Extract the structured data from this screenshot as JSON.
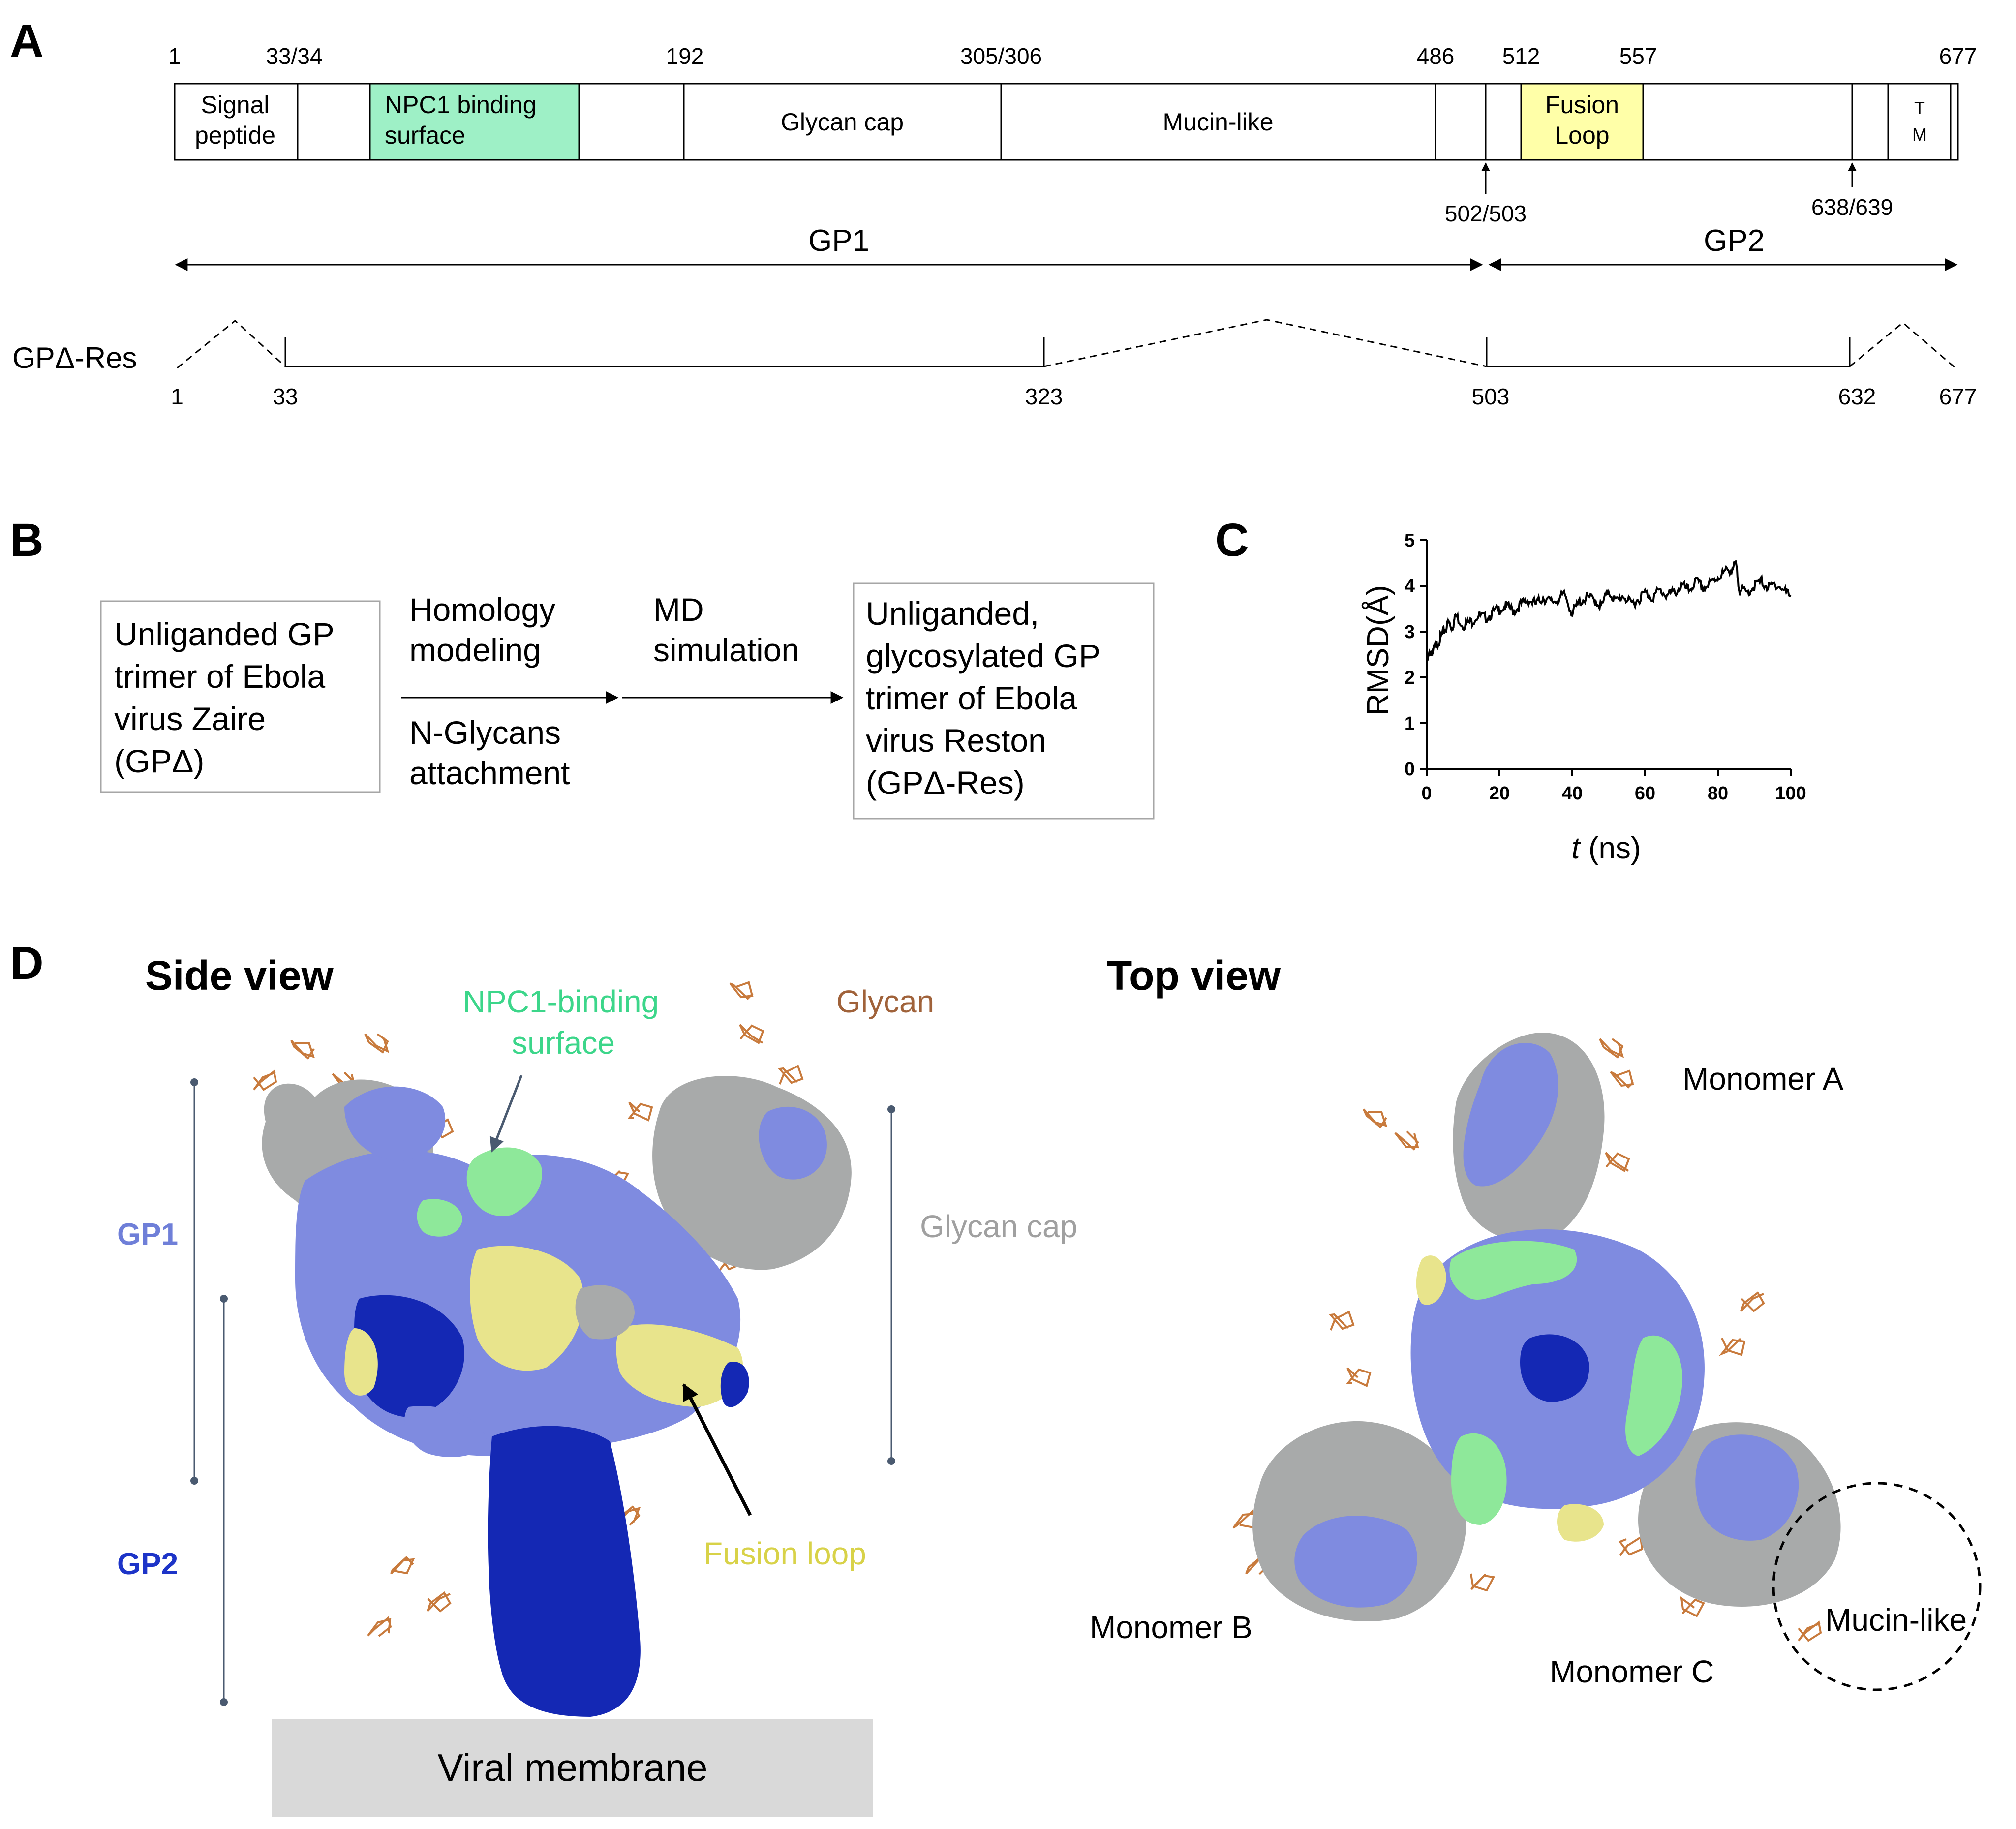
{
  "panels": {
    "a": "A",
    "b": "B",
    "c": "C",
    "d": "D"
  },
  "colors": {
    "npc1": "#9ef0c6",
    "fusion": "#ffffa8",
    "gp1_surface": "#7f8be0",
    "gp2_surface": "#1428b4",
    "glycan_cap_surface": "#a8aaaa",
    "fusion_surface": "#e8e48c",
    "npc1_surface": "#8ee89a",
    "glycan": "#c87a3c",
    "gp1_label": "#6f7fd8",
    "gp2_label": "#1d34c8",
    "npc1_label": "#3cd68a",
    "glycan_label": "#a0623a",
    "glycan_cap_label": "#a0a0a0",
    "fusion_label": "#d8d248",
    "membrane": "#d9d9d9"
  },
  "panel_a": {
    "top_numbers": [
      "1",
      "33/34",
      "192",
      "305/306",
      "486",
      "512",
      "557",
      "677"
    ],
    "domains": {
      "signal": [
        "Signal",
        "peptide"
      ],
      "npc1": [
        "NPC1 binding",
        "surface"
      ],
      "glycan_cap": "Glycan cap",
      "mucin": "Mucin-like",
      "fusion": [
        "Fusion",
        "Loop"
      ],
      "tm": [
        "T",
        "M"
      ]
    },
    "cleavage_sites": [
      "502/503",
      "638/639"
    ],
    "gp1": "GP1",
    "gp2": "GP2",
    "construct_label": "GPΔ-Res",
    "construct_numbers": [
      "1",
      "33",
      "323",
      "503",
      "632",
      "677"
    ]
  },
  "panel_b": {
    "start_box": [
      "Unliganded GP",
      "trimer of Ebola",
      "virus  Zaire",
      "(GPΔ)"
    ],
    "step1_top": [
      "Homology",
      "modeling"
    ],
    "step1_bottom": [
      "N-Glycans",
      "attachment"
    ],
    "step2": [
      "MD",
      "simulation"
    ],
    "end_box": [
      "Unliganded,",
      "glycosylated GP",
      "trimer of Ebola",
      "virus Reston",
      "(GPΔ-Res)"
    ]
  },
  "chart_data": {
    "type": "line",
    "title": "",
    "xlabel_italic": "t",
    "xlabel_rest": " (ns)",
    "ylabel": "RMSD(Å)",
    "xlim": [
      0,
      100
    ],
    "ylim": [
      0,
      5
    ],
    "xticks": [
      0,
      20,
      40,
      60,
      80,
      100
    ],
    "yticks": [
      0,
      1,
      2,
      3,
      4,
      5
    ],
    "x": [
      0,
      1,
      2,
      3,
      4,
      5,
      6,
      7,
      8,
      10,
      12,
      14,
      16,
      18,
      20,
      22,
      24,
      26,
      28,
      30,
      32,
      34,
      36,
      38,
      40,
      42,
      44,
      46,
      48,
      50,
      52,
      54,
      56,
      58,
      60,
      62,
      64,
      66,
      68,
      70,
      72,
      74,
      76,
      78,
      80,
      82,
      84,
      85,
      86,
      88,
      90,
      92,
      94,
      96,
      98,
      100
    ],
    "y": [
      2.3,
      2.55,
      2.6,
      2.75,
      2.9,
      3.05,
      3.2,
      3.1,
      3.35,
      3.15,
      3.2,
      3.35,
      3.3,
      3.4,
      3.5,
      3.55,
      3.45,
      3.6,
      3.7,
      3.6,
      3.75,
      3.65,
      3.7,
      3.8,
      3.4,
      3.65,
      3.75,
      3.7,
      3.55,
      3.9,
      3.65,
      3.8,
      3.6,
      3.7,
      3.85,
      3.75,
      3.9,
      3.8,
      3.85,
      4.0,
      3.9,
      4.1,
      3.95,
      4.05,
      4.2,
      4.3,
      4.4,
      4.45,
      3.9,
      3.85,
      4.0,
      4.1,
      3.95,
      4.05,
      3.9,
      3.8
    ]
  },
  "panel_d": {
    "side_view": "Side view",
    "top_view": "Top view",
    "gp1": "GP1",
    "gp2": "GP2",
    "npc1": [
      "NPC1-binding",
      "surface"
    ],
    "glycan": "Glycan",
    "glycan_cap": "Glycan cap",
    "fusion_loop": "Fusion loop",
    "membrane": "Viral membrane",
    "monomer_a": "Monomer A",
    "monomer_b": "Monomer B",
    "monomer_c": "Monomer C",
    "mucin_like": "Mucin-like"
  }
}
